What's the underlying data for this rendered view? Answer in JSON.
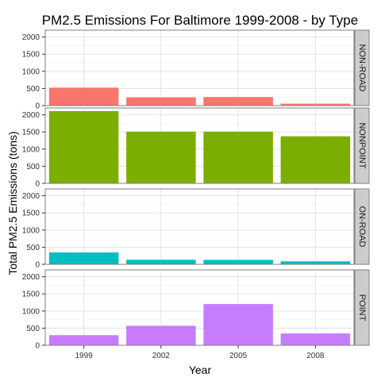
{
  "chart_data": {
    "type": "bar",
    "title": "PM2.5 Emissions For Baltimore 1999-2008 - by Type",
    "xlabel": "Year",
    "ylabel": "Total PM2.5 Emissions (tons)",
    "categories": [
      "1999",
      "2002",
      "2005",
      "2008"
    ],
    "ylim": [
      0,
      2200
    ],
    "yticks": [
      0,
      500,
      1000,
      1500,
      2000
    ],
    "grid": true,
    "facets": [
      {
        "label": "NON-ROAD",
        "color": "#F8766D",
        "values": [
          522.9,
          240.8,
          248.9,
          55.8
        ]
      },
      {
        "label": "NONPOINT",
        "color": "#7CAE00",
        "values": [
          2107.6,
          1509.5,
          1509.5,
          1373.2
        ]
      },
      {
        "label": "ON-ROAD",
        "color": "#00BFC4",
        "values": [
          346.8,
          134.3,
          130.4,
          88.3
        ]
      },
      {
        "label": "POINT",
        "color": "#C77CFF",
        "values": [
          296.8,
          569.3,
          1202.5,
          345.0
        ]
      }
    ]
  }
}
